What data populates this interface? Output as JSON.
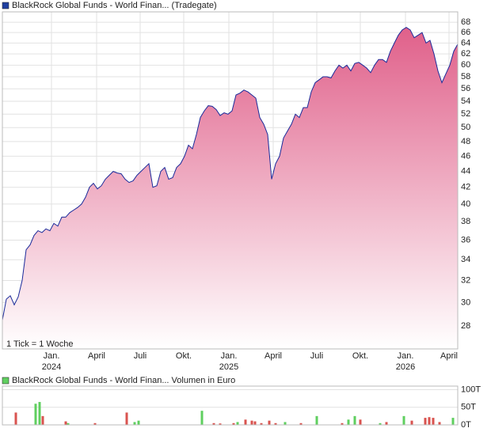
{
  "chart_data": [
    {
      "type": "area",
      "title": "BlackRock Global Funds - World Finan... (Tradegate)",
      "legend_color": "#1f3f9f",
      "note": "1 Tick = 1 Woche",
      "log_scale": true,
      "grid": true,
      "color": "#1a2a9a",
      "fill_top": "#e0608a",
      "fill_bottom": "#ffffff",
      "values": [
        28.5,
        30.3,
        30.6,
        29.8,
        30.5,
        32,
        35,
        35.5,
        36.5,
        37,
        36.8,
        37.2,
        37,
        37.8,
        37.5,
        38.5,
        38.5,
        39,
        39.3,
        39.6,
        40,
        40.8,
        42,
        42.5,
        41.8,
        42.2,
        43,
        43.5,
        44,
        43.8,
        43.7,
        43,
        42.6,
        42.8,
        43.5,
        44,
        44.5,
        45,
        42,
        42.2,
        44,
        44.5,
        43,
        43.2,
        44.5,
        45,
        46,
        47.5,
        47,
        49,
        51.5,
        52.5,
        53.3,
        53.2,
        52.7,
        51.8,
        52.2,
        52,
        52.5,
        55,
        55.3,
        55.8,
        55.5,
        55,
        54.5,
        51.5,
        50.5,
        49,
        43,
        45,
        46,
        48.5,
        49.5,
        50.5,
        52,
        51.5,
        53,
        53,
        55.5,
        57,
        57.5,
        58,
        58,
        57.8,
        59,
        60,
        59.5,
        60,
        59,
        60.3,
        60.5,
        60,
        59.5,
        58.7,
        60,
        61,
        61,
        60.5,
        62.5,
        64,
        65.5,
        66.5,
        67,
        66.5,
        65,
        65.5,
        66,
        64,
        64.5,
        62,
        59,
        57,
        58.5,
        60,
        62.5,
        63.8
      ],
      "xlim": [
        0,
        115
      ],
      "xticks": [
        {
          "value": 12.4,
          "label": "Jan."
        },
        {
          "value": 23.8,
          "label": "April"
        },
        {
          "value": 34.8,
          "label": "Juli"
        },
        {
          "value": 45.8,
          "label": "Okt."
        },
        {
          "value": 57.2,
          "label": "Jan."
        },
        {
          "value": 68.4,
          "label": "April"
        },
        {
          "value": 79.4,
          "label": "Juli"
        },
        {
          "value": 90.4,
          "label": "Okt."
        },
        {
          "value": 101.8,
          "label": "Jan."
        },
        {
          "value": 112.8,
          "label": "April"
        }
      ],
      "xtick_years": [
        {
          "value": 12.4,
          "label": "2024"
        },
        {
          "value": 57.2,
          "label": "2025"
        },
        {
          "value": 101.8,
          "label": "2026"
        }
      ],
      "ylim": [
        26.2,
        70.1
      ],
      "yticks": [
        28,
        30,
        32,
        34,
        36,
        38,
        40,
        42,
        44,
        46,
        48,
        50,
        52,
        54,
        56,
        58,
        60,
        62,
        64,
        66,
        68
      ]
    },
    {
      "type": "bar",
      "title": "BlackRock Global Funds - World Finan... Volumen in Euro",
      "legend_color": "#5fcf5f",
      "grid": true,
      "x": [
        3.4,
        8.4,
        9.4,
        10.2,
        16,
        16.6,
        23.4,
        31.4,
        33.4,
        34.4,
        50.4,
        53.4,
        55,
        58.4,
        59.4,
        61.4,
        63,
        63.8,
        65.4,
        67.4,
        69,
        71.4,
        75.4,
        79.4,
        85.8,
        87.4,
        89,
        90.4,
        95.4,
        97,
        101.4,
        103.4,
        106.8,
        107.8,
        108.8,
        110.4,
        113.8
      ],
      "values": [
        35000,
        60000,
        65000,
        25000,
        10000,
        5000,
        5000,
        35000,
        8000,
        12000,
        40000,
        5000,
        4000,
        5000,
        8000,
        15000,
        12000,
        10000,
        5000,
        12000,
        5000,
        8000,
        5000,
        25000,
        5000,
        15000,
        25000,
        15000,
        5000,
        8000,
        25000,
        12000,
        20000,
        22000,
        20000,
        8000,
        20000
      ],
      "colors": [
        "#d9534f",
        "#5fcf5f",
        "#5fcf5f",
        "#d9534f",
        "#d9534f",
        "#5fcf5f",
        "#d9534f",
        "#d9534f",
        "#5fcf5f",
        "#5fcf5f",
        "#5fcf5f",
        "#d9534f",
        "#d9534f",
        "#d9534f",
        "#5fcf5f",
        "#d9534f",
        "#d9534f",
        "#d9534f",
        "#d9534f",
        "#d9534f",
        "#d9534f",
        "#5fcf5f",
        "#d9534f",
        "#5fcf5f",
        "#d9534f",
        "#5fcf5f",
        "#5fcf5f",
        "#d9534f",
        "#5fcf5f",
        "#d9534f",
        "#5fcf5f",
        "#d9534f",
        "#d9534f",
        "#d9534f",
        "#d9534f",
        "#d9534f",
        "#5fcf5f"
      ],
      "xlim": [
        0,
        115
      ],
      "ylim": [
        0,
        110000
      ],
      "yticks": [
        {
          "value": 0,
          "label": "0T"
        },
        {
          "value": 50000,
          "label": "50T"
        },
        {
          "value": 100000,
          "label": "100T"
        }
      ]
    }
  ]
}
